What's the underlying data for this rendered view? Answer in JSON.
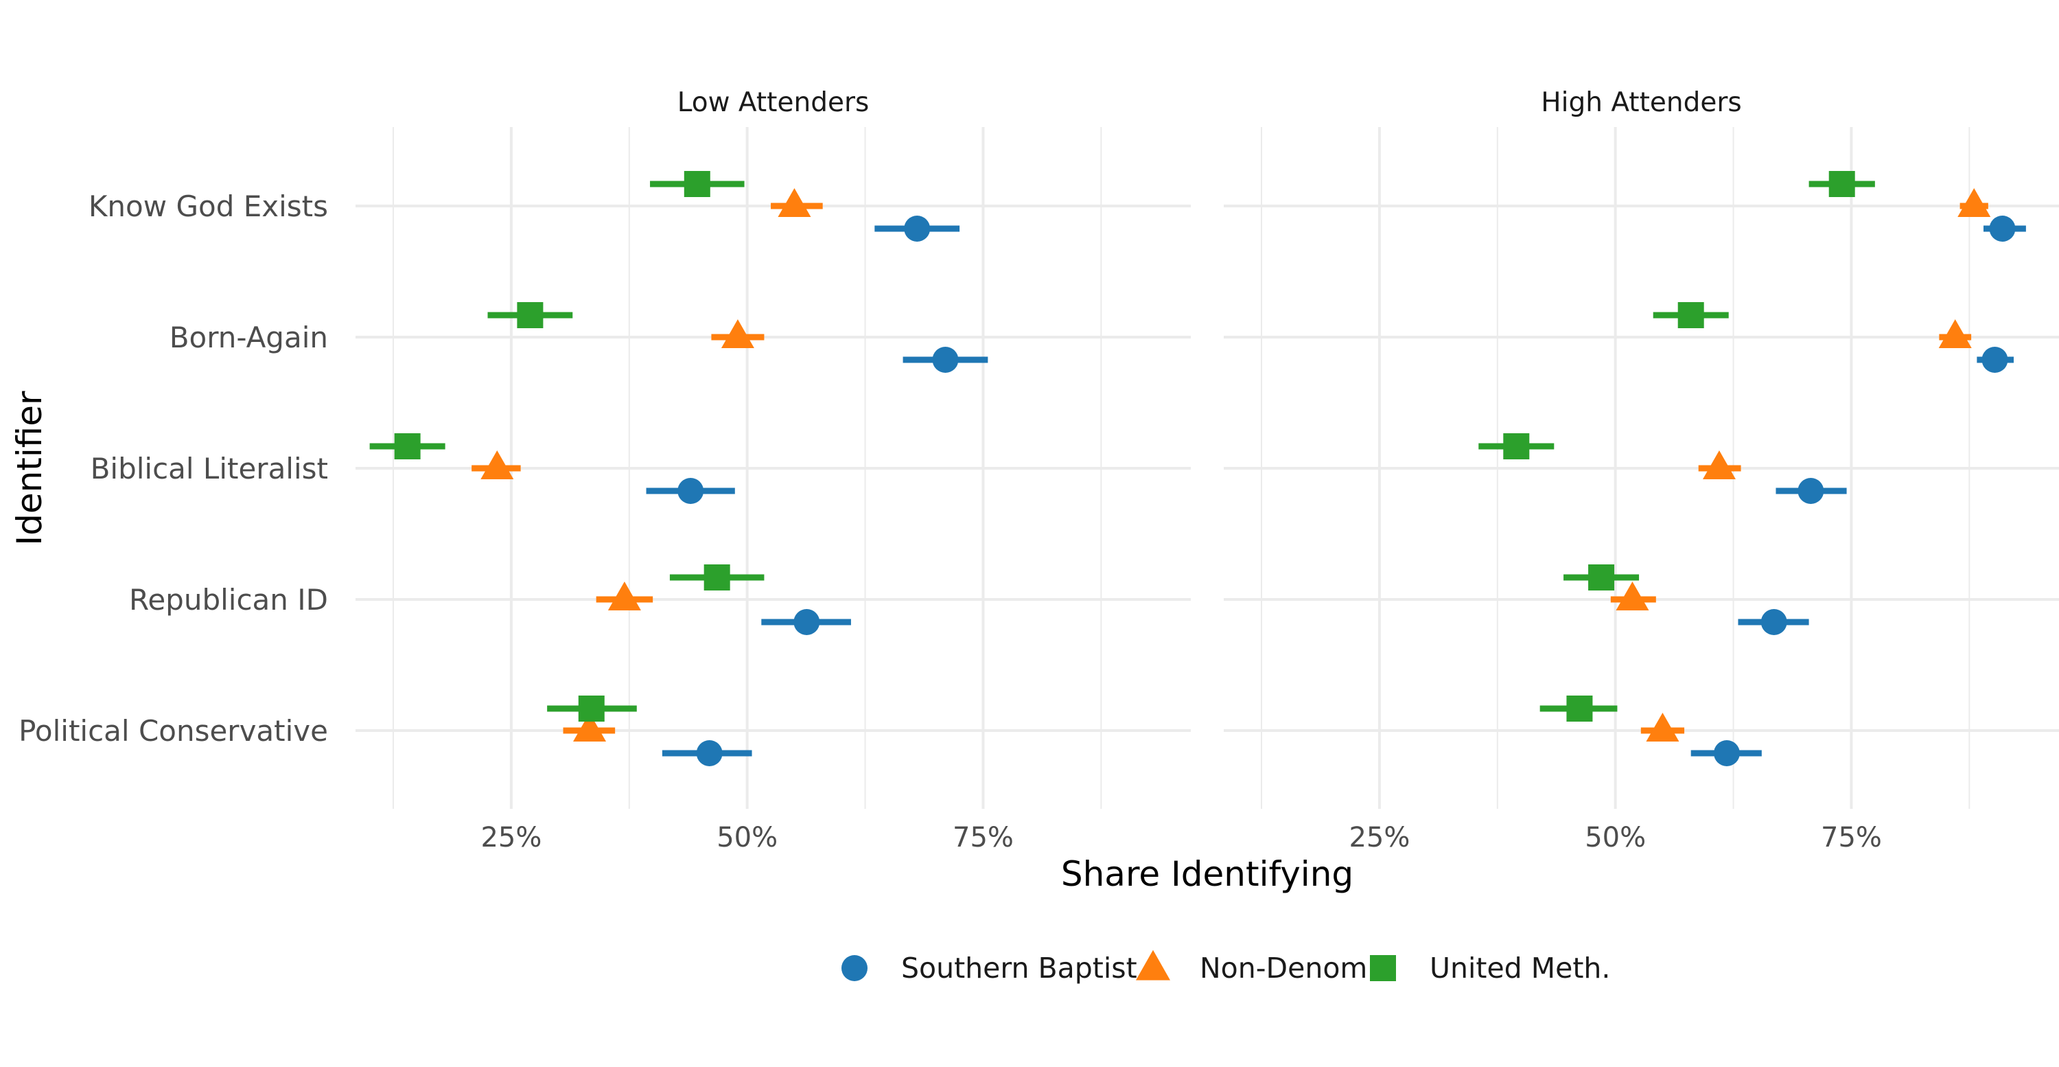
{
  "chart_data": {
    "type": "scatter",
    "xlabel": "Share Identifying",
    "ylabel": "Identifier",
    "x_ticks": [
      0.25,
      0.5,
      0.75
    ],
    "x_tick_labels": [
      "25%",
      "50%",
      "75%"
    ],
    "xlim": [
      0.085,
      0.97
    ],
    "categories": [
      "Know God Exists",
      "Born-Again",
      "Biblical Literalist",
      "Republican ID",
      "Political Conservative"
    ],
    "legend": {
      "position": "bottom"
    },
    "series": [
      {
        "name": "Southern Baptist",
        "color": "#1f77b4",
        "marker": "circle"
      },
      {
        "name": "Non-Denom",
        "color": "#ff7f0e",
        "marker": "triangle"
      },
      {
        "name": "United Meth.",
        "color": "#2ca02c",
        "marker": "square"
      }
    ],
    "facets": [
      {
        "title": "Low Attenders",
        "points": [
          {
            "category": "Know God Exists",
            "series": "Southern Baptist",
            "x": 0.68,
            "lo": 0.635,
            "hi": 0.725
          },
          {
            "category": "Know God Exists",
            "series": "Non-Denom",
            "x": 0.55,
            "lo": 0.525,
            "hi": 0.58
          },
          {
            "category": "Know God Exists",
            "series": "United Meth.",
            "x": 0.447,
            "lo": 0.397,
            "hi": 0.497
          },
          {
            "category": "Born-Again",
            "series": "Southern Baptist",
            "x": 0.71,
            "lo": 0.665,
            "hi": 0.755
          },
          {
            "category": "Born-Again",
            "series": "Non-Denom",
            "x": 0.49,
            "lo": 0.462,
            "hi": 0.518
          },
          {
            "category": "Born-Again",
            "series": "United Meth.",
            "x": 0.27,
            "lo": 0.225,
            "hi": 0.315
          },
          {
            "category": "Biblical Literalist",
            "series": "Southern Baptist",
            "x": 0.44,
            "lo": 0.393,
            "hi": 0.487
          },
          {
            "category": "Biblical Literalist",
            "series": "Non-Denom",
            "x": 0.235,
            "lo": 0.208,
            "hi": 0.26
          },
          {
            "category": "Biblical Literalist",
            "series": "United Meth.",
            "x": 0.14,
            "lo": 0.1,
            "hi": 0.18
          },
          {
            "category": "Republican ID",
            "series": "Southern Baptist",
            "x": 0.563,
            "lo": 0.515,
            "hi": 0.61
          },
          {
            "category": "Republican ID",
            "series": "Non-Denom",
            "x": 0.37,
            "lo": 0.34,
            "hi": 0.4
          },
          {
            "category": "Republican ID",
            "series": "United Meth.",
            "x": 0.468,
            "lo": 0.418,
            "hi": 0.518
          },
          {
            "category": "Political Conservative",
            "series": "Southern Baptist",
            "x": 0.46,
            "lo": 0.41,
            "hi": 0.505
          },
          {
            "category": "Political Conservative",
            "series": "Non-Denom",
            "x": 0.333,
            "lo": 0.305,
            "hi": 0.36
          },
          {
            "category": "Political Conservative",
            "series": "United Meth.",
            "x": 0.335,
            "lo": 0.288,
            "hi": 0.383
          }
        ]
      },
      {
        "title": "High Attenders",
        "points": [
          {
            "category": "Know God Exists",
            "series": "Southern Baptist",
            "x": 0.91,
            "lo": 0.89,
            "hi": 0.935
          },
          {
            "category": "Know God Exists",
            "series": "Non-Denom",
            "x": 0.88,
            "lo": 0.865,
            "hi": 0.895
          },
          {
            "category": "Know God Exists",
            "series": "United Meth.",
            "x": 0.74,
            "lo": 0.705,
            "hi": 0.775
          },
          {
            "category": "Born-Again",
            "series": "Southern Baptist",
            "x": 0.902,
            "lo": 0.883,
            "hi": 0.922
          },
          {
            "category": "Born-Again",
            "series": "Non-Denom",
            "x": 0.86,
            "lo": 0.843,
            "hi": 0.877
          },
          {
            "category": "Born-Again",
            "series": "United Meth.",
            "x": 0.58,
            "lo": 0.54,
            "hi": 0.62
          },
          {
            "category": "Biblical Literalist",
            "series": "Southern Baptist",
            "x": 0.707,
            "lo": 0.67,
            "hi": 0.745
          },
          {
            "category": "Biblical Literalist",
            "series": "Non-Denom",
            "x": 0.61,
            "lo": 0.588,
            "hi": 0.633
          },
          {
            "category": "Biblical Literalist",
            "series": "United Meth.",
            "x": 0.395,
            "lo": 0.355,
            "hi": 0.435
          },
          {
            "category": "Republican ID",
            "series": "Southern Baptist",
            "x": 0.668,
            "lo": 0.63,
            "hi": 0.705
          },
          {
            "category": "Republican ID",
            "series": "Non-Denom",
            "x": 0.518,
            "lo": 0.495,
            "hi": 0.543
          },
          {
            "category": "Republican ID",
            "series": "United Meth.",
            "x": 0.485,
            "lo": 0.445,
            "hi": 0.525
          },
          {
            "category": "Political Conservative",
            "series": "Southern Baptist",
            "x": 0.618,
            "lo": 0.58,
            "hi": 0.655
          },
          {
            "category": "Political Conservative",
            "series": "Non-Denom",
            "x": 0.55,
            "lo": 0.527,
            "hi": 0.573
          },
          {
            "category": "Political Conservative",
            "series": "United Meth.",
            "x": 0.462,
            "lo": 0.42,
            "hi": 0.502
          }
        ]
      }
    ]
  }
}
